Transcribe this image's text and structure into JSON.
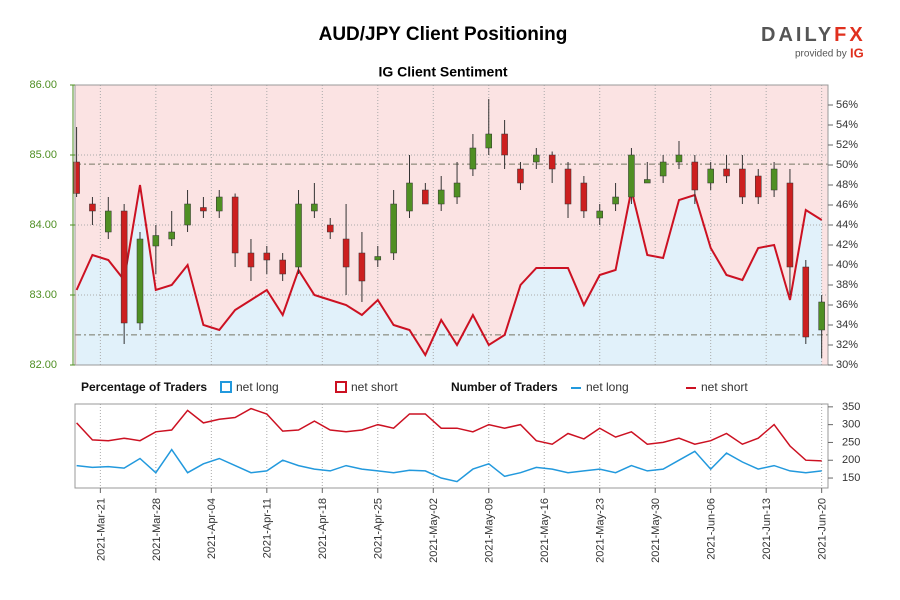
{
  "brand": {
    "name": "DAILY",
    "accent": "FX",
    "provided_by": "provided by",
    "provider": "IG"
  },
  "chart_data": [
    {
      "type": "candlestick",
      "title": "AUD/JPY Client Positioning",
      "subtitle": "IG Client Sentiment",
      "x": [
        2,
        4,
        6,
        8,
        10,
        12,
        14,
        16,
        18,
        20,
        22,
        24,
        26,
        28,
        30,
        32,
        34,
        36,
        38,
        40,
        42,
        44,
        46,
        48,
        50,
        52,
        54,
        56,
        58,
        60,
        62,
        64,
        66,
        68,
        70,
        72,
        74,
        76,
        78,
        80,
        82,
        84,
        86,
        88,
        90,
        92,
        94,
        96
      ],
      "open": [
        84.9,
        84.3,
        83.9,
        84.2,
        82.6,
        83.7,
        83.8,
        84.0,
        84.25,
        84.2,
        84.4,
        83.6,
        83.6,
        83.5,
        83.4,
        84.2,
        84.0,
        83.8,
        83.6,
        83.5,
        83.6,
        84.2,
        84.5,
        84.3,
        84.4,
        84.8,
        85.1,
        85.3,
        84.8,
        84.9,
        85.0,
        84.8,
        84.6,
        84.1,
        84.3,
        84.4,
        84.6,
        84.7,
        84.9,
        84.9,
        84.6,
        84.8,
        84.8,
        84.7,
        84.5,
        84.6,
        83.4,
        82.5
      ],
      "high": [
        85.4,
        84.4,
        84.4,
        84.3,
        83.9,
        84.0,
        84.2,
        84.5,
        84.4,
        84.5,
        84.45,
        83.8,
        83.7,
        83.6,
        84.5,
        84.6,
        84.1,
        84.3,
        83.9,
        83.7,
        84.5,
        85.0,
        84.6,
        84.7,
        84.9,
        85.3,
        85.8,
        85.5,
        84.9,
        85.1,
        85.05,
        84.9,
        84.7,
        84.3,
        84.6,
        85.1,
        84.9,
        85.0,
        85.2,
        85.0,
        84.9,
        85.0,
        85.0,
        84.8,
        84.9,
        84.8,
        83.5,
        83.0
      ],
      "low": [
        84.4,
        84.0,
        83.8,
        82.3,
        82.5,
        83.3,
        83.7,
        83.9,
        84.1,
        84.1,
        83.4,
        83.2,
        83.3,
        83.2,
        83.3,
        84.1,
        83.8,
        83.0,
        82.9,
        83.4,
        83.5,
        84.1,
        84.3,
        84.2,
        84.3,
        84.7,
        85.0,
        84.8,
        84.5,
        84.8,
        84.6,
        84.1,
        84.1,
        84.0,
        84.2,
        84.3,
        84.6,
        84.6,
        84.8,
        84.3,
        84.5,
        84.6,
        84.3,
        84.3,
        84.4,
        83.0,
        82.3,
        82.1
      ],
      "close": [
        84.45,
        84.2,
        84.2,
        82.6,
        83.8,
        83.85,
        83.9,
        84.3,
        84.2,
        84.4,
        83.6,
        83.4,
        83.5,
        83.3,
        84.3,
        84.3,
        83.9,
        83.4,
        83.2,
        83.55,
        84.3,
        84.6,
        84.3,
        84.5,
        84.6,
        85.1,
        85.3,
        85.0,
        84.6,
        85.0,
        84.8,
        84.3,
        84.2,
        84.2,
        84.4,
        85.0,
        84.65,
        84.9,
        85.0,
        84.5,
        84.8,
        84.7,
        84.4,
        84.4,
        84.8,
        83.4,
        82.4,
        82.9
      ],
      "up_color": "#4f8f23",
      "down_color": "#cc1f1f",
      "sentiment": {
        "color": "#cc1122",
        "axis": "y2",
        "values": [
          37.5,
          41,
          40.5,
          38.5,
          48,
          37.5,
          38,
          40,
          34,
          33.5,
          35.5,
          36.5,
          37.5,
          35,
          39.5,
          37,
          36.5,
          36,
          35,
          36.5,
          34,
          33.5,
          31,
          34.5,
          32,
          35,
          32,
          33,
          38,
          39.7,
          39.7,
          39.7,
          36,
          39,
          39.5,
          47.5,
          41,
          40.7,
          46.5,
          47,
          41.7,
          39,
          38.5,
          41.7,
          42,
          36.5,
          45.5,
          44.5
        ]
      },
      "fill_legend_title": "Percentage of Traders",
      "fill_legend": [
        {
          "name": "net long",
          "color": "#2299dd",
          "fill": "#e1f1fa"
        },
        {
          "name": "net short",
          "color": "#cc1122",
          "fill": "#fbe3e3"
        }
      ],
      "price_lines": [
        84.87,
        82.43
      ],
      "xlim": [
        1.8,
        96.8
      ],
      "ylim": [
        82,
        86
      ],
      "yticks": [
        {
          "value": 82,
          "label": "82.00"
        },
        {
          "value": 83,
          "label": "83.00"
        },
        {
          "value": 84,
          "label": "84.00"
        },
        {
          "value": 85,
          "label": "85.00"
        },
        {
          "value": 86,
          "label": "86.00"
        }
      ],
      "y2lim": [
        30,
        58
      ],
      "y2ticks": [
        {
          "value": 30,
          "label": "30%"
        },
        {
          "value": 32,
          "label": "32%"
        },
        {
          "value": 34,
          "label": "34%"
        },
        {
          "value": 36,
          "label": "36%"
        },
        {
          "value": 38,
          "label": "38%"
        },
        {
          "value": 40,
          "label": "40%"
        },
        {
          "value": 42,
          "label": "42%"
        },
        {
          "value": 44,
          "label": "44%"
        },
        {
          "value": 46,
          "label": "46%"
        },
        {
          "value": 48,
          "label": "48%"
        },
        {
          "value": 50,
          "label": "50%"
        },
        {
          "value": 52,
          "label": "52%"
        },
        {
          "value": 54,
          "label": "54%"
        },
        {
          "value": 56,
          "label": "56%"
        }
      ],
      "grid": true
    },
    {
      "type": "line",
      "legend_title": "Number of Traders",
      "x": [
        2,
        4,
        6,
        8,
        10,
        12,
        14,
        16,
        18,
        20,
        22,
        24,
        26,
        28,
        30,
        32,
        34,
        36,
        38,
        40,
        42,
        44,
        46,
        48,
        50,
        52,
        54,
        56,
        58,
        60,
        62,
        64,
        66,
        68,
        70,
        72,
        74,
        76,
        78,
        80,
        82,
        84,
        86,
        88,
        90,
        92,
        94,
        96
      ],
      "series": [
        {
          "name": "net long",
          "color": "#2299dd",
          "values": [
            185,
            180,
            182,
            178,
            205,
            165,
            230,
            165,
            190,
            205,
            185,
            165,
            170,
            200,
            185,
            175,
            170,
            185,
            175,
            170,
            165,
            172,
            170,
            150,
            140,
            175,
            190,
            155,
            165,
            180,
            175,
            165,
            170,
            175,
            165,
            185,
            170,
            175,
            200,
            225,
            175,
            220,
            195,
            175,
            185,
            170,
            165,
            170
          ]
        },
        {
          "name": "net short",
          "color": "#cc1122",
          "values": [
            305,
            257,
            255,
            262,
            255,
            280,
            285,
            340,
            305,
            315,
            320,
            345,
            330,
            282,
            285,
            310,
            285,
            280,
            285,
            300,
            290,
            330,
            330,
            290,
            290,
            280,
            300,
            290,
            300,
            255,
            245,
            275,
            260,
            290,
            265,
            280,
            245,
            250,
            262,
            245,
            255,
            275,
            245,
            262,
            300,
            240,
            200,
            198
          ]
        }
      ],
      "xlim": [
        1.8,
        96.8
      ],
      "ylim": [
        122,
        358
      ],
      "yticks": [
        150,
        200,
        250,
        300,
        350
      ],
      "xticks": [
        {
          "value": 5,
          "label": "2021-Mar-21"
        },
        {
          "value": 12,
          "label": "2021-Mar-28"
        },
        {
          "value": 19,
          "label": "2021-Apr-04"
        },
        {
          "value": 26,
          "label": "2021-Apr-11"
        },
        {
          "value": 33,
          "label": "2021-Apr-18"
        },
        {
          "value": 40,
          "label": "2021-Apr-25"
        },
        {
          "value": 47,
          "label": "2021-May-02"
        },
        {
          "value": 54,
          "label": "2021-May-09"
        },
        {
          "value": 61,
          "label": "2021-May-16"
        },
        {
          "value": 68,
          "label": "2021-May-23"
        },
        {
          "value": 75,
          "label": "2021-May-30"
        },
        {
          "value": 82,
          "label": "2021-Jun-06"
        },
        {
          "value": 89,
          "label": "2021-Jun-13"
        },
        {
          "value": 96,
          "label": "2021-Jun-20"
        }
      ],
      "grid": true
    }
  ]
}
